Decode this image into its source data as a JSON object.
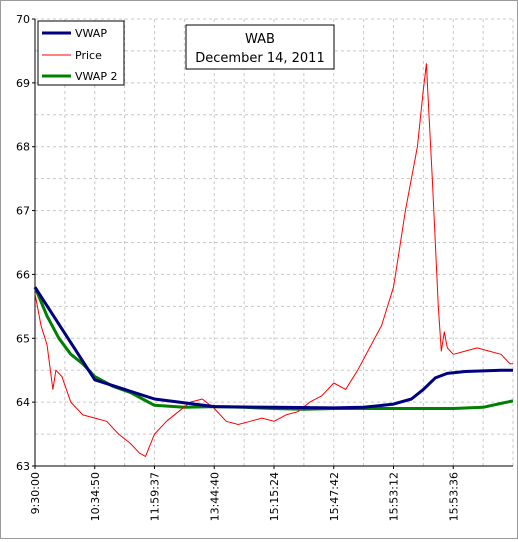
{
  "chart_data": {
    "type": "line",
    "title": "WAB",
    "subtitle": "December 14, 2011",
    "xlabel": "",
    "ylabel": "",
    "ylim": [
      63,
      70
    ],
    "y_ticks": [
      "63",
      "64",
      "65",
      "66",
      "67",
      "68",
      "69",
      "70"
    ],
    "x_tick_labels": [
      "9:30:00",
      "10:34:50",
      "11:59:37",
      "13:44:40",
      "15:15:24",
      "15:47:42",
      "15:53:12",
      "15:53:36"
    ],
    "grid": true,
    "legend_position": "top-left",
    "series": [
      {
        "name": "VWAP",
        "color": "#000080",
        "x": [
          0,
          1,
          2,
          3,
          4,
          5,
          5.5,
          6,
          6.3,
          6.5,
          6.7,
          6.9,
          7.2,
          7.5,
          7.8,
          8
        ],
        "values": [
          65.8,
          64.35,
          64.05,
          63.93,
          63.92,
          63.91,
          63.92,
          63.97,
          64.05,
          64.2,
          64.38,
          64.45,
          64.48,
          64.49,
          64.5,
          64.5
        ]
      },
      {
        "name": "Price",
        "color": "#ff0000",
        "x": [
          0,
          0.1,
          0.2,
          0.3,
          0.35,
          0.45,
          0.6,
          0.8,
          1,
          1.2,
          1.4,
          1.6,
          1.75,
          1.85,
          2,
          2.2,
          2.4,
          2.6,
          2.8,
          3,
          3.2,
          3.4,
          3.6,
          3.8,
          4,
          4.2,
          4.4,
          4.6,
          4.8,
          5,
          5.2,
          5.4,
          5.6,
          5.8,
          6,
          6.1,
          6.2,
          6.3,
          6.4,
          6.5,
          6.55,
          6.6,
          6.65,
          6.7,
          6.75,
          6.8,
          6.85,
          6.9,
          7,
          7.2,
          7.4,
          7.6,
          7.8,
          7.95,
          8
        ],
        "values": [
          65.7,
          65.2,
          64.9,
          64.2,
          64.5,
          64.4,
          64.0,
          63.8,
          63.75,
          63.7,
          63.5,
          63.35,
          63.2,
          63.15,
          63.5,
          63.7,
          63.85,
          64.0,
          64.05,
          63.9,
          63.7,
          63.65,
          63.7,
          63.75,
          63.7,
          63.8,
          63.85,
          64.0,
          64.1,
          64.3,
          64.2,
          64.5,
          64.85,
          65.2,
          65.8,
          66.4,
          67.0,
          67.5,
          68.0,
          68.9,
          69.3,
          68.4,
          67.5,
          66.5,
          65.5,
          64.8,
          65.1,
          64.85,
          64.75,
          64.8,
          64.85,
          64.8,
          64.75,
          64.6,
          64.6
        ]
      },
      {
        "name": "VWAP 2",
        "color": "#008000",
        "x": [
          0,
          0.2,
          0.4,
          0.6,
          0.8,
          1,
          1.3,
          1.6,
          1.8,
          2,
          2.5,
          3,
          3.5,
          4,
          4.5,
          5,
          5.5,
          6,
          6.5,
          7,
          7.5,
          7.8,
          8
        ],
        "values": [
          65.8,
          65.35,
          65.0,
          64.75,
          64.6,
          64.4,
          64.25,
          64.15,
          64.05,
          63.95,
          63.92,
          63.93,
          63.92,
          63.9,
          63.89,
          63.9,
          63.9,
          63.9,
          63.9,
          63.9,
          63.92,
          63.98,
          64.02
        ]
      }
    ]
  }
}
